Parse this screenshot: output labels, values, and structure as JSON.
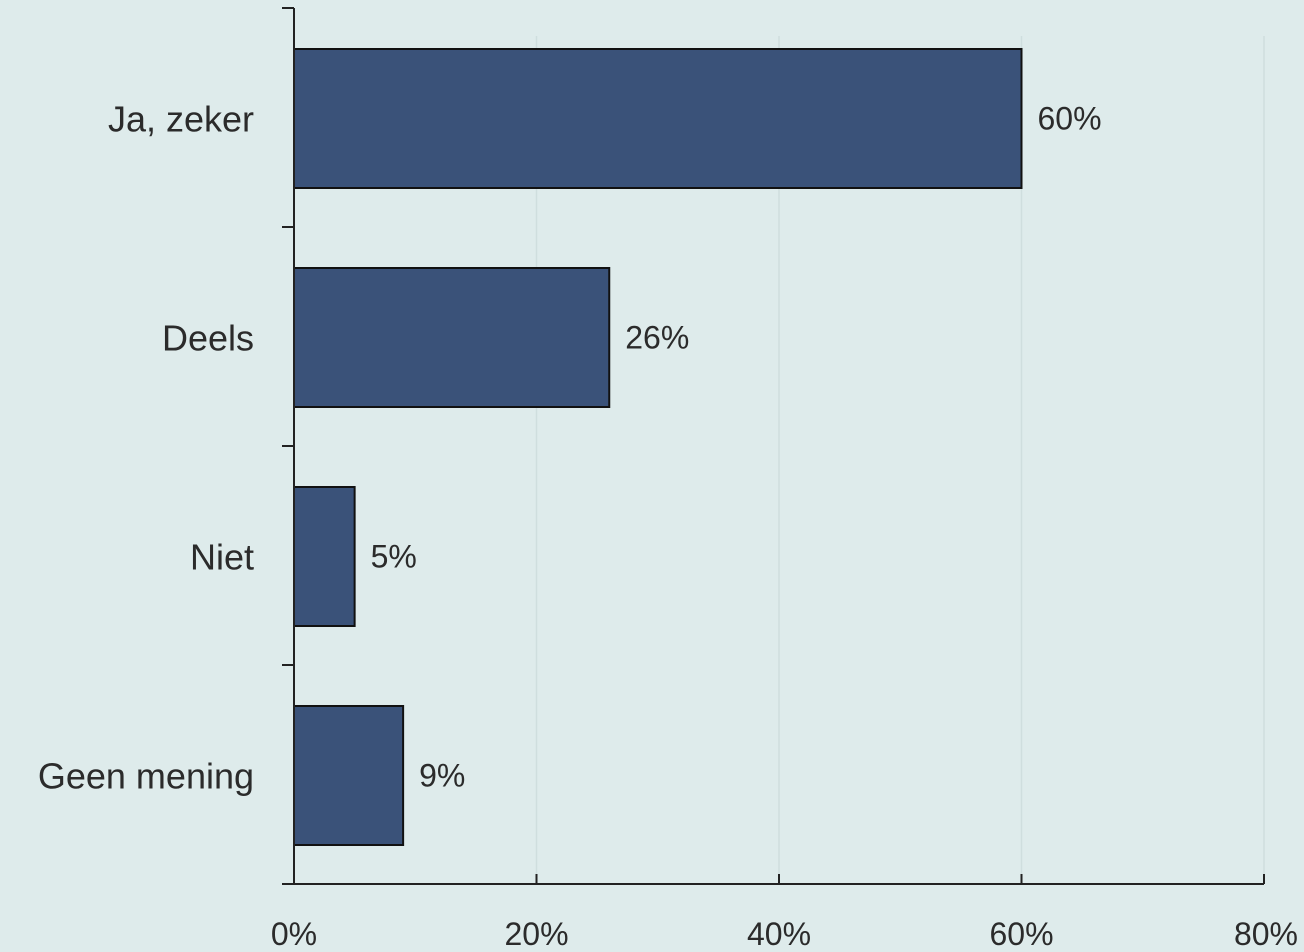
{
  "chart_data": {
    "type": "bar",
    "orientation": "horizontal",
    "categories": [
      "Ja, zeker",
      "Deels",
      "Niet",
      "Geen mening"
    ],
    "values": [
      60,
      26,
      5,
      9
    ],
    "data_labels": [
      "60%",
      "26%",
      "5%",
      "9%"
    ],
    "x_ticks": [
      0,
      20,
      40,
      60,
      80
    ],
    "x_tick_labels": [
      "0%",
      "20%",
      "40%",
      "60%",
      "80%"
    ],
    "xlim": [
      0,
      80
    ],
    "grid": "vertical",
    "title": "",
    "xlabel": "",
    "ylabel": "",
    "colors": {
      "bar_fill": "#3a5279",
      "bar_stroke": "#111111",
      "background": "#deebeb",
      "grid": "#cfdede",
      "axis": "#222222"
    }
  }
}
